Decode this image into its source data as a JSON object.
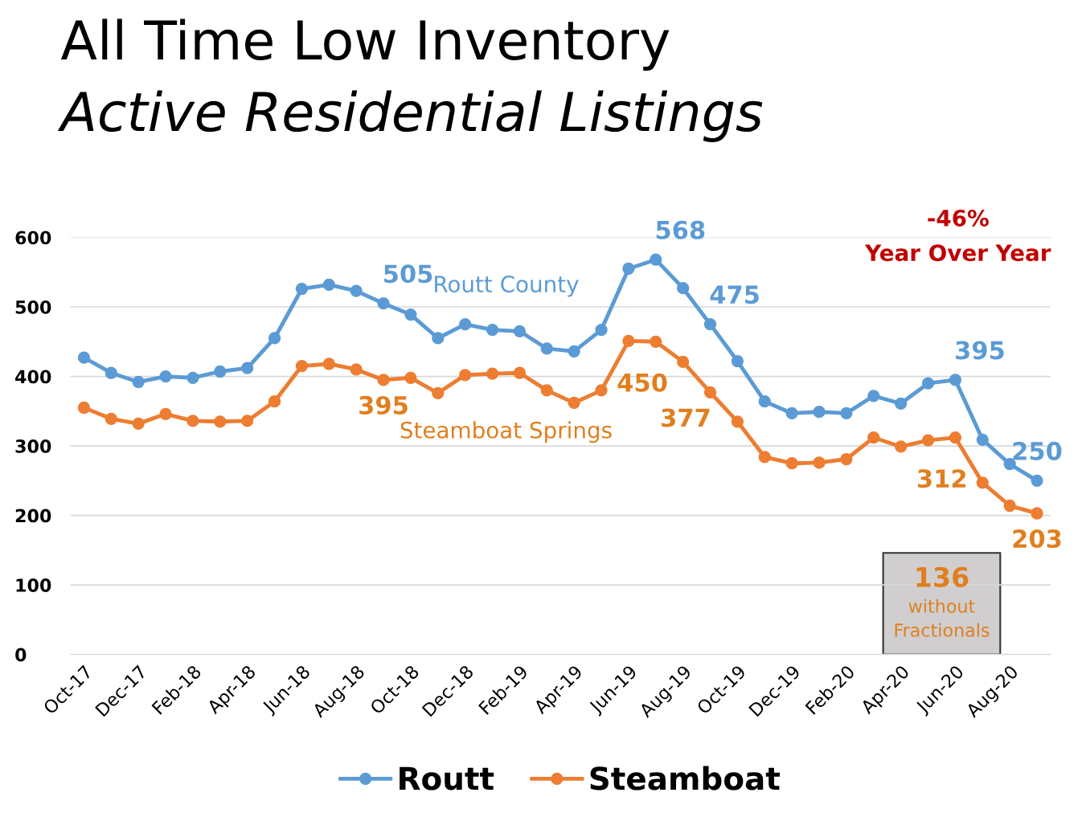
{
  "chart_data": {
    "type": "line",
    "title": "All Time Low Inventory",
    "subtitle": "Active Residential Listings",
    "categories": [
      "Oct-17",
      null,
      "Dec-17",
      null,
      "Feb-18",
      null,
      "Apr-18",
      null,
      "Jun-18",
      null,
      "Aug-18",
      null,
      "Oct-18",
      null,
      "Dec-18",
      null,
      "Feb-19",
      null,
      "Apr-19",
      null,
      "Jun-19",
      null,
      "Aug-19",
      null,
      "Oct-19",
      null,
      "Dec-19",
      null,
      "Feb-20",
      null,
      "Apr-20",
      null,
      "Jun-20",
      null,
      "Aug-20",
      null
    ],
    "series": [
      {
        "name": "Routt",
        "color": "#5b9bd5",
        "values": [
          427,
          405,
          392,
          400,
          398,
          407,
          412,
          455,
          526,
          532,
          523,
          505,
          489,
          455,
          475,
          467,
          465,
          440,
          436,
          467,
          555,
          568,
          527,
          475,
          422,
          364,
          347,
          349,
          347,
          372,
          361,
          390,
          395,
          309,
          274,
          250
        ],
        "value_labels": [
          null,
          null,
          null,
          null,
          null,
          null,
          null,
          null,
          null,
          null,
          null,
          "505",
          null,
          null,
          null,
          null,
          null,
          null,
          null,
          null,
          null,
          "568",
          null,
          "475",
          null,
          null,
          null,
          null,
          null,
          null,
          null,
          null,
          "395",
          null,
          null,
          "250"
        ]
      },
      {
        "name": "Steamboat",
        "color": "#ed7d31",
        "values": [
          355,
          339,
          332,
          346,
          336,
          335,
          336,
          364,
          415,
          418,
          410,
          395,
          398,
          376,
          402,
          404,
          405,
          380,
          362,
          380,
          451,
          450,
          421,
          377,
          335,
          284,
          275,
          276,
          281,
          312,
          299,
          308,
          312,
          247,
          214,
          203
        ],
        "value_labels": [
          null,
          null,
          null,
          null,
          null,
          null,
          null,
          null,
          null,
          null,
          null,
          "395",
          null,
          null,
          null,
          null,
          null,
          null,
          null,
          null,
          null,
          "450",
          null,
          "377",
          null,
          null,
          null,
          null,
          null,
          null,
          null,
          null,
          "312",
          null,
          null,
          "203"
        ]
      }
    ],
    "ylim": [
      0,
      600
    ],
    "yticks": [
      0,
      100,
      200,
      300,
      400,
      500,
      600
    ],
    "grid": "y",
    "legend": "bottom",
    "marker": "circle",
    "line_style": "solid",
    "annotations": [
      "Routt County",
      "Steamboat Springs",
      "-46%",
      "Year Over Year",
      "136",
      "without Fractionals"
    ]
  }
}
